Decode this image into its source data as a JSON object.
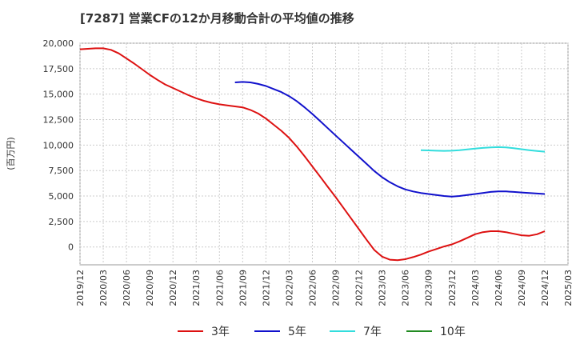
{
  "chart_data": {
    "type": "line",
    "title": "[7287]  営業CFの12か月移動合計の平均値の推移",
    "ylabel": "(百万円)",
    "xlabel": "",
    "ylim": [
      -1750,
      20000
    ],
    "y_ticks": [
      0,
      2500,
      5000,
      7500,
      10000,
      12500,
      15000,
      17500,
      20000
    ],
    "y_tick_labels": [
      "0",
      "2,500",
      "5,000",
      "7,500",
      "10,000",
      "12,500",
      "15,000",
      "17,500",
      "20,000"
    ],
    "x_ticks": [
      "2019-12",
      "2020-03",
      "2020-06",
      "2020-09",
      "2020-12",
      "2021-03",
      "2021-06",
      "2021-09",
      "2021-12",
      "2022-03",
      "2022-06",
      "2022-09",
      "2022-12",
      "2023-03",
      "2023-06",
      "2023-09",
      "2023-12",
      "2024-03",
      "2024-06",
      "2024-09",
      "2024-12",
      "2025-03"
    ],
    "x_tick_labels": [
      "2019/12",
      "2020/03",
      "2020/06",
      "2020/09",
      "2020/12",
      "2021/03",
      "2021/06",
      "2021/09",
      "2021/12",
      "2022/03",
      "2022/06",
      "2022/09",
      "2022/12",
      "2023/03",
      "2023/06",
      "2023/09",
      "2023/12",
      "2024/03",
      "2024/06",
      "2024/09",
      "2024/12",
      "2025/03"
    ],
    "grid": true,
    "legend_position": "bottom",
    "series": [
      {
        "name": "3年",
        "color": "#dd1111",
        "points": [
          [
            "2019-12",
            19400
          ],
          [
            "2020-01",
            19450
          ],
          [
            "2020-02",
            19500
          ],
          [
            "2020-03",
            19500
          ],
          [
            "2020-04",
            19350
          ],
          [
            "2020-05",
            19000
          ],
          [
            "2020-06",
            18500
          ],
          [
            "2020-07",
            18000
          ],
          [
            "2020-08",
            17450
          ],
          [
            "2020-09",
            16900
          ],
          [
            "2020-10",
            16400
          ],
          [
            "2020-11",
            15950
          ],
          [
            "2020-12",
            15600
          ],
          [
            "2021-01",
            15250
          ],
          [
            "2021-02",
            14900
          ],
          [
            "2021-03",
            14600
          ],
          [
            "2021-04",
            14350
          ],
          [
            "2021-05",
            14150
          ],
          [
            "2021-06",
            14000
          ],
          [
            "2021-07",
            13900
          ],
          [
            "2021-08",
            13800
          ],
          [
            "2021-09",
            13700
          ],
          [
            "2021-10",
            13450
          ],
          [
            "2021-11",
            13100
          ],
          [
            "2021-12",
            12600
          ],
          [
            "2022-01",
            12000
          ],
          [
            "2022-02",
            11400
          ],
          [
            "2022-03",
            10700
          ],
          [
            "2022-04",
            9850
          ],
          [
            "2022-05",
            8900
          ],
          [
            "2022-06",
            7900
          ],
          [
            "2022-07",
            6900
          ],
          [
            "2022-08",
            5900
          ],
          [
            "2022-09",
            4900
          ],
          [
            "2022-10",
            3850
          ],
          [
            "2022-11",
            2800
          ],
          [
            "2022-12",
            1750
          ],
          [
            "2023-01",
            700
          ],
          [
            "2023-02",
            -300
          ],
          [
            "2023-03",
            -950
          ],
          [
            "2023-04",
            -1250
          ],
          [
            "2023-05",
            -1300
          ],
          [
            "2023-06",
            -1200
          ],
          [
            "2023-07",
            -1000
          ],
          [
            "2023-08",
            -750
          ],
          [
            "2023-09",
            -450
          ],
          [
            "2023-10",
            -200
          ],
          [
            "2023-11",
            50
          ],
          [
            "2023-12",
            250
          ],
          [
            "2024-01",
            550
          ],
          [
            "2024-02",
            900
          ],
          [
            "2024-03",
            1250
          ],
          [
            "2024-04",
            1450
          ],
          [
            "2024-05",
            1550
          ],
          [
            "2024-06",
            1550
          ],
          [
            "2024-07",
            1450
          ],
          [
            "2024-08",
            1300
          ],
          [
            "2024-09",
            1150
          ],
          [
            "2024-10",
            1100
          ],
          [
            "2024-11",
            1250
          ],
          [
            "2024-12",
            1550
          ]
        ]
      },
      {
        "name": "5年",
        "color": "#1111cc",
        "points": [
          [
            "2021-08",
            16150
          ],
          [
            "2021-09",
            16200
          ],
          [
            "2021-10",
            16150
          ],
          [
            "2021-11",
            16000
          ],
          [
            "2021-12",
            15800
          ],
          [
            "2022-01",
            15500
          ],
          [
            "2022-02",
            15200
          ],
          [
            "2022-03",
            14800
          ],
          [
            "2022-04",
            14300
          ],
          [
            "2022-05",
            13700
          ],
          [
            "2022-06",
            13050
          ],
          [
            "2022-07",
            12350
          ],
          [
            "2022-08",
            11650
          ],
          [
            "2022-09",
            10950
          ],
          [
            "2022-10",
            10250
          ],
          [
            "2022-11",
            9550
          ],
          [
            "2022-12",
            8850
          ],
          [
            "2023-01",
            8150
          ],
          [
            "2023-02",
            7450
          ],
          [
            "2023-03",
            6850
          ],
          [
            "2023-04",
            6350
          ],
          [
            "2023-05",
            5950
          ],
          [
            "2023-06",
            5650
          ],
          [
            "2023-07",
            5450
          ],
          [
            "2023-08",
            5300
          ],
          [
            "2023-09",
            5200
          ],
          [
            "2023-10",
            5100
          ],
          [
            "2023-11",
            5000
          ],
          [
            "2023-12",
            4950
          ],
          [
            "2024-01",
            5000
          ],
          [
            "2024-02",
            5100
          ],
          [
            "2024-03",
            5200
          ],
          [
            "2024-04",
            5300
          ],
          [
            "2024-05",
            5400
          ],
          [
            "2024-06",
            5450
          ],
          [
            "2024-07",
            5450
          ],
          [
            "2024-08",
            5400
          ],
          [
            "2024-09",
            5350
          ],
          [
            "2024-10",
            5300
          ],
          [
            "2024-11",
            5250
          ],
          [
            "2024-12",
            5200
          ]
        ]
      },
      {
        "name": "7年",
        "color": "#33dddd",
        "points": [
          [
            "2023-08",
            9500
          ],
          [
            "2023-09",
            9480
          ],
          [
            "2023-10",
            9450
          ],
          [
            "2023-11",
            9430
          ],
          [
            "2023-12",
            9450
          ],
          [
            "2024-01",
            9500
          ],
          [
            "2024-02",
            9580
          ],
          [
            "2024-03",
            9650
          ],
          [
            "2024-04",
            9720
          ],
          [
            "2024-05",
            9780
          ],
          [
            "2024-06",
            9800
          ],
          [
            "2024-07",
            9780
          ],
          [
            "2024-08",
            9700
          ],
          [
            "2024-09",
            9600
          ],
          [
            "2024-10",
            9500
          ],
          [
            "2024-11",
            9420
          ],
          [
            "2024-12",
            9350
          ]
        ]
      },
      {
        "name": "10年",
        "color": "#228b22",
        "points": []
      }
    ]
  }
}
